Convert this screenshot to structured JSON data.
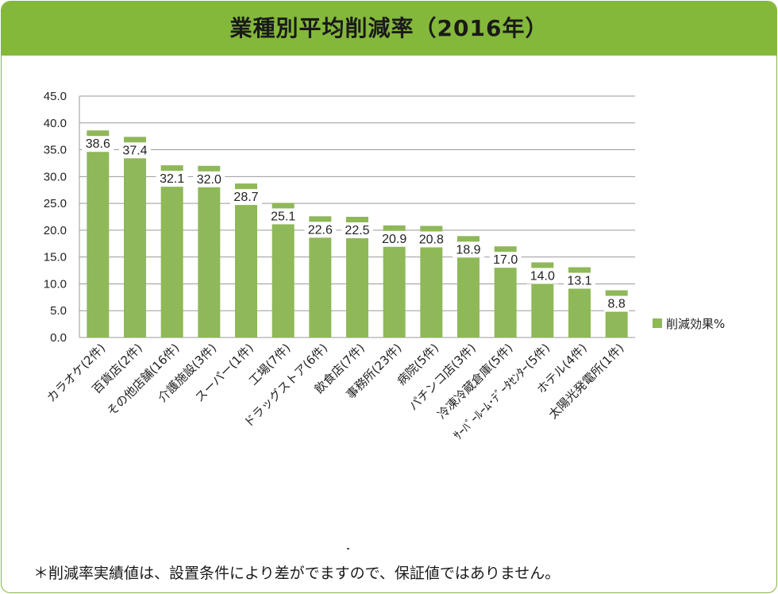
{
  "header": {
    "title": "業種別平均削減率（2016年）"
  },
  "footnote": "＊削減率実績値は、設置条件により差がでますので、保証値ではありません。",
  "chart_data": {
    "type": "bar",
    "title": "業種別平均削減率（2016年）",
    "categories": [
      "カラオケ(2件)",
      "百貨店(2件)",
      "その他店舗(16件)",
      "介護施設(3件)",
      "スーパー(1件)",
      "工場(7件)",
      "ドラッグストア(6件)",
      "飲食店(7件)",
      "事務所(23件)",
      "病院(5件)",
      "パチンコ店(3件)",
      "冷凍冷蔵倉庫(5件)",
      "ｻｰﾊﾞｰﾙｰﾑ･ﾃﾞｰﾀｾﾝﾀｰ(5件)",
      "ホテル(4件)",
      "太陽光発電所(1件)"
    ],
    "series": [
      {
        "name": "削減効果%",
        "values": [
          38.6,
          37.4,
          32.1,
          32.0,
          28.7,
          25.1,
          22.6,
          22.5,
          20.9,
          20.8,
          18.9,
          17.0,
          14.0,
          13.1,
          8.8
        ],
        "labels": [
          "38.6",
          "37.4",
          "32.1",
          "32.0",
          "28.7",
          "25.1",
          "22.6",
          "22.5",
          "20.9",
          "20.8",
          "18.9",
          "17.0",
          "14.0",
          "13.1",
          "8.8"
        ]
      }
    ],
    "ylim": [
      0,
      45
    ],
    "yticks": [
      "0.0",
      "5.0",
      "10.0",
      "15.0",
      "20.0",
      "25.0",
      "30.0",
      "35.0",
      "40.0",
      "45.0"
    ],
    "grid": true,
    "legend": "right",
    "color": "#8fb858"
  }
}
